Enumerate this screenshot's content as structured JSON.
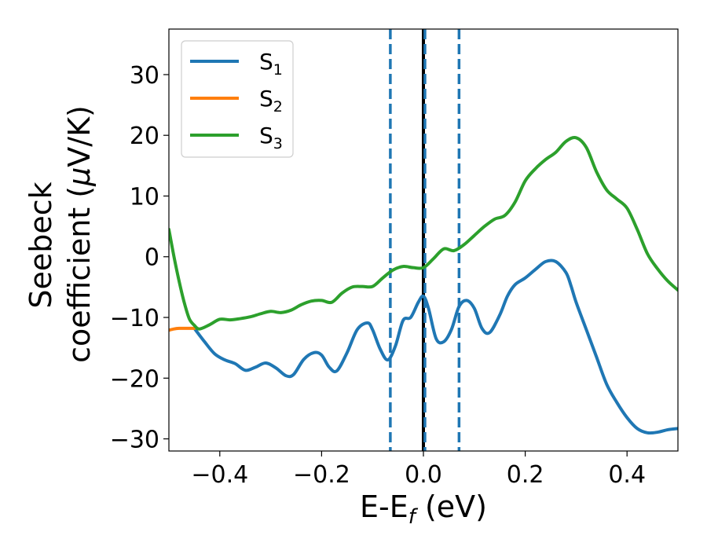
{
  "chart_data": {
    "type": "line",
    "title": "",
    "xlabel": "E-E",
    "xlabel_sub": "f",
    "xlabel_unit": " (eV)",
    "ylabel_line1": "Seebeck",
    "ylabel_line2": "coefficient  (",
    "ylabel_mu": "μ",
    "ylabel_unit": "V/K)",
    "xlim": [
      -0.5,
      0.5
    ],
    "ylim": [
      -32,
      37.5
    ],
    "xticks": [
      -0.4,
      -0.2,
      0.0,
      0.2,
      0.4
    ],
    "xtick_labels": [
      "−0.4",
      "−0.2",
      "0.0",
      "0.2",
      "0.4"
    ],
    "yticks": [
      -30,
      -20,
      -10,
      0,
      10,
      20,
      30
    ],
    "ytick_labels": [
      "−30",
      "−20",
      "−10",
      "0",
      "10",
      "20",
      "30"
    ],
    "grid": false,
    "legend_position": "top-left",
    "vlines": [
      {
        "x": 0.0,
        "style": "solid",
        "color": "#000000"
      },
      {
        "x": -0.065,
        "style": "dashed",
        "color": "#1f77b4"
      },
      {
        "x": 0.003,
        "style": "dashed",
        "color": "#1f77b4"
      },
      {
        "x": 0.07,
        "style": "dashed",
        "color": "#1f77b4"
      }
    ],
    "series": [
      {
        "name": "S",
        "sub": "1",
        "color": "#1f77b4",
        "x": [
          -0.45,
          -0.43,
          -0.41,
          -0.39,
          -0.37,
          -0.35,
          -0.33,
          -0.31,
          -0.29,
          -0.27,
          -0.255,
          -0.235,
          -0.215,
          -0.2,
          -0.185,
          -0.17,
          -0.15,
          -0.13,
          -0.11,
          -0.1,
          -0.085,
          -0.07,
          -0.055,
          -0.04,
          -0.025,
          -0.01,
          0.0,
          0.01,
          0.025,
          0.04,
          0.055,
          0.07,
          0.085,
          0.1,
          0.115,
          0.13,
          0.15,
          0.165,
          0.18,
          0.2,
          0.22,
          0.24,
          0.26,
          0.28,
          0.29,
          0.3,
          0.32,
          0.34,
          0.36,
          0.38,
          0.4,
          0.42,
          0.44,
          0.46,
          0.48,
          0.5
        ],
        "values": [
          -11.8,
          -14.0,
          -16.0,
          -17.0,
          -17.6,
          -18.7,
          -18.2,
          -17.5,
          -18.3,
          -19.6,
          -19.4,
          -16.9,
          -15.8,
          -16.2,
          -18.2,
          -18.8,
          -15.8,
          -12.0,
          -10.9,
          -12.0,
          -15.2,
          -17.0,
          -14.7,
          -10.5,
          -10.0,
          -7.5,
          -6.5,
          -8.5,
          -13.5,
          -14.0,
          -12.0,
          -8.2,
          -7.2,
          -8.5,
          -11.8,
          -12.5,
          -9.6,
          -6.5,
          -4.6,
          -3.5,
          -2.1,
          -0.8,
          -0.8,
          -2.6,
          -4.8,
          -7.5,
          -12.0,
          -16.5,
          -21.0,
          -24.0,
          -26.5,
          -28.3,
          -29.0,
          -28.9,
          -28.5,
          -28.3
        ]
      },
      {
        "name": "S",
        "sub": "2",
        "color": "#ff7f0e",
        "x": [
          -0.5,
          -0.49,
          -0.48,
          -0.47,
          -0.46,
          -0.45
        ],
        "values": [
          -12.1,
          -11.9,
          -11.8,
          -11.8,
          -11.8,
          -11.8
        ]
      },
      {
        "name": "S",
        "sub": "3",
        "color": "#2ca02c",
        "x": [
          -0.5,
          -0.49,
          -0.48,
          -0.47,
          -0.46,
          -0.45,
          -0.44,
          -0.42,
          -0.4,
          -0.38,
          -0.36,
          -0.34,
          -0.32,
          -0.3,
          -0.28,
          -0.26,
          -0.24,
          -0.22,
          -0.2,
          -0.18,
          -0.16,
          -0.14,
          -0.12,
          -0.1,
          -0.08,
          -0.06,
          -0.04,
          -0.02,
          0.0,
          0.02,
          0.04,
          0.06,
          0.08,
          0.1,
          0.12,
          0.14,
          0.16,
          0.18,
          0.2,
          0.22,
          0.24,
          0.26,
          0.28,
          0.3,
          0.32,
          0.34,
          0.36,
          0.38,
          0.4,
          0.42,
          0.44,
          0.46,
          0.48,
          0.5
        ],
        "values": [
          4.5,
          0.0,
          -4.0,
          -7.5,
          -10.2,
          -11.3,
          -11.9,
          -11.2,
          -10.3,
          -10.4,
          -10.2,
          -9.9,
          -9.4,
          -9.0,
          -9.2,
          -8.8,
          -7.9,
          -7.3,
          -7.2,
          -7.5,
          -6.0,
          -5.0,
          -4.9,
          -4.9,
          -3.5,
          -2.2,
          -1.6,
          -1.8,
          -1.8,
          -0.3,
          1.3,
          1.0,
          2.0,
          3.5,
          5.0,
          6.2,
          6.8,
          9.0,
          12.5,
          14.5,
          16.0,
          17.2,
          19.0,
          19.6,
          18.0,
          14.0,
          11.0,
          9.5,
          8.0,
          4.5,
          0.5,
          -2.0,
          -4.0,
          -5.5
        ]
      }
    ]
  }
}
